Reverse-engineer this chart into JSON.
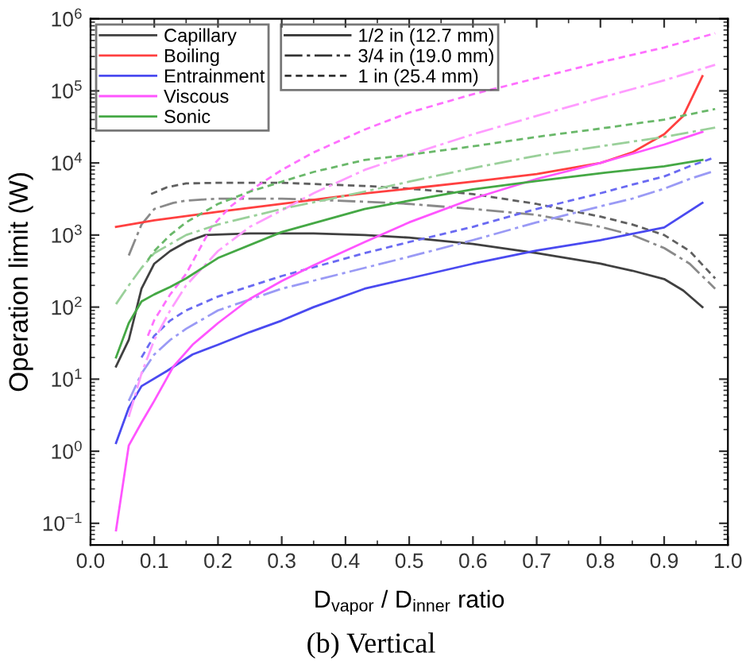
{
  "chart_data": {
    "type": "line",
    "xlabel": "D$_{vapor}$ / D$_{inner}$ ratio",
    "ylabel": "Operation limit (W)",
    "annotations": [
      "(b) Vertical",
      "1/2 in (12.7 mm)",
      "3/4 in (19.0 mm)",
      "1 in (25.4 mm)"
    ],
    "log": "y",
    "grid": false,
    "legend": "top left",
    "xlim": [
      0,
      1
    ],
    "xticks": [
      {
        "value": 0,
        "label": "0.0"
      },
      0.1,
      0.2,
      0.3,
      0.4,
      0.5,
      0.6,
      0.7,
      0.8,
      0.9,
      {
        "value": 1,
        "label": "1.0"
      }
    ],
    "ylim": [
      0.05,
      1000000
    ],
    "yticks": [
      {
        "value": 0.1,
        "label": "10$^{−1}$"
      },
      {
        "value": 1,
        "label": "10$^{0}$"
      },
      {
        "value": 10,
        "label": "10$^{1}$"
      },
      {
        "value": 100,
        "label": "10$^{2}$"
      },
      {
        "value": 1000,
        "label": "10$^{3}$"
      },
      {
        "value": 10000,
        "label": "10$^{4}$"
      },
      {
        "value": 100000,
        "label": "10$^{5}$"
      },
      {
        "value": 1000000,
        "label": "10$^{6}$"
      }
    ],
    "series": [
      {
        "name": "Capillary",
        "color": "#404040",
        "line_style": "solid",
        "x": [
          0.04,
          0.06,
          0.08,
          0.1,
          0.125,
          0.15,
          0.18,
          0.25,
          0.35,
          0.43,
          0.5,
          0.6,
          0.7,
          0.8,
          0.85,
          0.9,
          0.93,
          0.96
        ],
        "values": [
          15,
          35,
          180,
          400,
          600,
          800,
          1000,
          1050,
          1050,
          1000,
          920,
          750,
          560,
          400,
          320,
          245,
          170,
          100
        ]
      },
      {
        "color": "#8a8a8a",
        "line_style": "dashdot",
        "x": [
          0.06,
          0.08,
          0.1,
          0.13,
          0.15,
          0.2,
          0.3,
          0.43,
          0.5,
          0.6,
          0.7,
          0.8,
          0.85,
          0.9,
          0.94,
          0.98
        ],
        "values": [
          520,
          1400,
          2300,
          2800,
          3000,
          3200,
          3200,
          2900,
          2700,
          2300,
          1900,
          1300,
          1000,
          660,
          400,
          180
        ]
      },
      {
        "color": "#606060",
        "line_style": "dashed",
        "x": [
          0.095,
          0.12,
          0.15,
          0.2,
          0.3,
          0.43,
          0.5,
          0.6,
          0.7,
          0.8,
          0.85,
          0.9,
          0.94,
          0.98
        ],
        "values": [
          3700,
          4600,
          5200,
          5300,
          5300,
          4800,
          4400,
          3700,
          2700,
          1800,
          1400,
          1000,
          600,
          250
        ]
      },
      {
        "name": "Boiling",
        "color": "#ff4040",
        "line_style": "solid",
        "x": [
          0.04,
          0.1,
          0.2,
          0.3,
          0.42,
          0.5,
          0.6,
          0.7,
          0.8,
          0.85,
          0.9,
          0.93,
          0.96
        ],
        "values": [
          1300,
          1600,
          2100,
          2700,
          3700,
          4400,
          5500,
          7000,
          10000,
          14000,
          25000,
          45000,
          160000
        ]
      },
      {
        "name": "Entrainment",
        "color": "#4a4af0",
        "line_style": "solid",
        "x": [
          0.04,
          0.06,
          0.08,
          0.12,
          0.16,
          0.2,
          0.25,
          0.3,
          0.35,
          0.43,
          0.5,
          0.6,
          0.7,
          0.8,
          0.9,
          0.96
        ],
        "values": [
          1.3,
          4,
          8,
          13,
          22,
          30,
          45,
          65,
          100,
          180,
          250,
          400,
          610,
          850,
          1270,
          2800
        ]
      },
      {
        "color": "#9a9af5",
        "line_style": "dashdot",
        "x": [
          0.06,
          0.08,
          0.1,
          0.125,
          0.15,
          0.2,
          0.3,
          0.43,
          0.5,
          0.6,
          0.7,
          0.8,
          0.85,
          0.9,
          0.94,
          0.98
        ],
        "values": [
          5,
          12,
          22,
          35,
          50,
          90,
          180,
          350,
          500,
          850,
          1500,
          2500,
          3200,
          4400,
          6000,
          7800
        ]
      },
      {
        "color": "#6a6af2",
        "line_style": "dashed",
        "x": [
          0.08,
          0.1,
          0.125,
          0.15,
          0.2,
          0.3,
          0.43,
          0.5,
          0.6,
          0.7,
          0.8,
          0.85,
          0.9,
          0.94,
          0.98
        ],
        "values": [
          20,
          40,
          65,
          90,
          140,
          270,
          560,
          800,
          1300,
          2300,
          3800,
          5000,
          6500,
          9000,
          12000
        ]
      },
      {
        "name": "Viscous",
        "color": "#ff55ff",
        "line_style": "solid",
        "x": [
          0.04,
          0.06,
          0.08,
          0.1,
          0.13,
          0.16,
          0.2,
          0.25,
          0.3,
          0.35,
          0.43,
          0.5,
          0.6,
          0.7,
          0.8,
          0.9,
          0.96
        ],
        "values": [
          0.08,
          1.2,
          2.5,
          5,
          15,
          30,
          60,
          130,
          230,
          380,
          800,
          1500,
          3200,
          6000,
          10000,
          18000,
          27000
        ]
      },
      {
        "color": "#ff9cff",
        "line_style": "dashdot",
        "x": [
          0.06,
          0.08,
          0.1,
          0.125,
          0.15,
          0.2,
          0.25,
          0.3,
          0.35,
          0.43,
          0.5,
          0.6,
          0.7,
          0.8,
          0.9,
          0.98
        ],
        "values": [
          3,
          12,
          35,
          90,
          200,
          600,
          1300,
          2200,
          3800,
          8000,
          13000,
          25000,
          45000,
          80000,
          140000,
          230000
        ]
      },
      {
        "color": "#ff70ff",
        "line_style": "dashed",
        "x": [
          0.09,
          0.1,
          0.125,
          0.15,
          0.19,
          0.22,
          0.26,
          0.3,
          0.35,
          0.43,
          0.5,
          0.6,
          0.7,
          0.8,
          0.9,
          0.98
        ],
        "values": [
          40,
          66,
          150,
          290,
          1300,
          2500,
          4700,
          8000,
          14000,
          29000,
          50000,
          90000,
          150000,
          250000,
          400000,
          630000
        ]
      },
      {
        "name": "Sonic",
        "color": "#45a845",
        "line_style": "solid",
        "x": [
          0.04,
          0.06,
          0.08,
          0.1,
          0.125,
          0.15,
          0.2,
          0.3,
          0.43,
          0.5,
          0.6,
          0.7,
          0.8,
          0.9,
          0.96
        ],
        "values": [
          20,
          60,
          120,
          150,
          190,
          250,
          480,
          1100,
          2300,
          3000,
          4300,
          5600,
          7200,
          9000,
          11000
        ]
      },
      {
        "color": "#9ad09a",
        "line_style": "dashdot",
        "x": [
          0.04,
          0.06,
          0.08,
          0.1,
          0.15,
          0.2,
          0.3,
          0.43,
          0.5,
          0.6,
          0.7,
          0.8,
          0.9,
          0.98
        ],
        "values": [
          110,
          200,
          350,
          560,
          1000,
          1400,
          2300,
          4000,
          5500,
          8500,
          12600,
          17000,
          23000,
          31000
        ]
      },
      {
        "color": "#6ab86a",
        "line_style": "dashed",
        "x": [
          0.09,
          0.1,
          0.125,
          0.15,
          0.2,
          0.25,
          0.3,
          0.35,
          0.43,
          0.5,
          0.6,
          0.7,
          0.8,
          0.9,
          0.98
        ],
        "values": [
          450,
          600,
          1000,
          1500,
          2700,
          4000,
          5500,
          7500,
          11000,
          13000,
          17000,
          23000,
          30000,
          40000,
          56000
        ]
      }
    ]
  }
}
